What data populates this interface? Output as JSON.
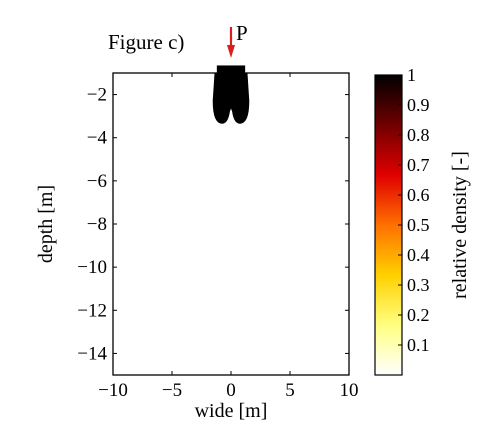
{
  "chart_data": {
    "type": "heatmap",
    "title": "Figure c)",
    "xlabel": "wide [m]",
    "ylabel": "depth [m]",
    "xlim": [
      -10,
      10
    ],
    "ylim": [
      -15,
      -1
    ],
    "x_ticks": [
      -10,
      -5,
      0,
      5,
      10
    ],
    "y_ticks": [
      -14,
      -12,
      -10,
      -8,
      -6,
      -4,
      -2
    ],
    "grid": false,
    "load": {
      "label": "P",
      "x": 0,
      "direction": "down",
      "color": "#d62020"
    },
    "footing": {
      "x_range": [
        -1.2,
        1.2
      ],
      "depth_range": [
        -1,
        -0.65
      ],
      "relative_density": 1.0
    },
    "densified_zone": {
      "relative_density": 1.0,
      "shape": "two-lobed bulb under footing",
      "x_range": [
        -1.55,
        1.55
      ],
      "depth_range": [
        -3.35,
        -1
      ]
    },
    "background_relative_density": 0.0,
    "colorbar": {
      "label": "relative density [-]",
      "range": [
        0,
        1
      ],
      "ticks": [
        0.1,
        0.2,
        0.3,
        0.4,
        0.5,
        0.6,
        0.7,
        0.8,
        0.9,
        1
      ],
      "tick_labels": [
        "0.1",
        "0.2",
        "0.3",
        "0.4",
        "0.5",
        "0.6",
        "0.7",
        "0.8",
        "0.9",
        "1"
      ],
      "colormap": [
        "#ffffff",
        "#ffff80",
        "#ffd000",
        "#ff7000",
        "#e00000",
        "#700000",
        "#000000"
      ]
    }
  }
}
